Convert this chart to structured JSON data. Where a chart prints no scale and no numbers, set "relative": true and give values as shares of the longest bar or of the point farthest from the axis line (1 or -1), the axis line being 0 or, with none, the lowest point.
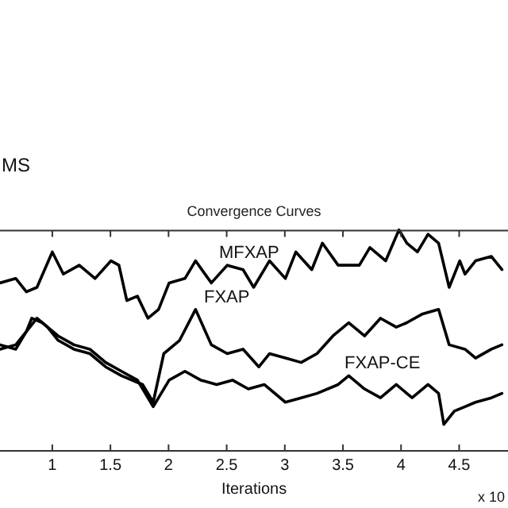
{
  "chart_data": {
    "type": "line",
    "title": "Convergence Curves",
    "xlabel": "Iterations",
    "relative": true,
    "xlim": [
      0.55,
      4.92
    ],
    "xticks": [
      1,
      1.5,
      2,
      2.5,
      3,
      3.5,
      4,
      4.5
    ],
    "grid": false,
    "legend": false,
    "marker": "none",
    "line_style": "solid",
    "annotations": [
      "MS",
      "x 10"
    ],
    "series": [
      {
        "name": "MFXAP",
        "color": "#000000",
        "x": [
          0.55,
          0.686,
          0.777,
          0.868,
          1.0,
          1.095,
          1.232,
          1.368,
          1.505,
          1.573,
          1.641,
          1.732,
          1.823,
          1.914,
          2.005,
          2.141,
          2.232,
          2.368,
          2.505,
          2.641,
          2.732,
          2.868,
          3.005,
          3.095,
          3.232,
          3.323,
          3.459,
          3.641,
          3.732,
          3.868,
          3.982,
          4.05,
          4.141,
          4.232,
          4.323,
          4.414,
          4.505,
          4.55,
          4.641,
          4.777,
          4.868
        ],
        "values": [
          0.76,
          0.78,
          0.72,
          0.74,
          0.9,
          0.8,
          0.84,
          0.78,
          0.86,
          0.84,
          0.68,
          0.7,
          0.6,
          0.64,
          0.76,
          0.78,
          0.86,
          0.76,
          0.84,
          0.82,
          0.74,
          0.86,
          0.78,
          0.9,
          0.82,
          0.94,
          0.84,
          0.84,
          0.92,
          0.86,
          1,
          0.94,
          0.9,
          0.98,
          0.94,
          0.74,
          0.86,
          0.8,
          0.86,
          0.88,
          0.82
        ]
      },
      {
        "name": "FXAP",
        "color": "#000000",
        "x": [
          0.55,
          0.686,
          0.777,
          0.868,
          0.959,
          1.05,
          1.186,
          1.323,
          1.459,
          1.595,
          1.777,
          1.868,
          1.959,
          2.095,
          2.232,
          2.368,
          2.505,
          2.641,
          2.777,
          2.868,
          3.005,
          3.141,
          3.277,
          3.414,
          3.55,
          3.686,
          3.823,
          3.959,
          4.05,
          4.186,
          4.323,
          4.414,
          4.55,
          4.641,
          4.777,
          4.868
        ],
        "values": [
          0.48,
          0.46,
          0.54,
          0.6,
          0.56,
          0.5,
          0.46,
          0.44,
          0.38,
          0.34,
          0.3,
          0.22,
          0.44,
          0.5,
          0.64,
          0.48,
          0.44,
          0.46,
          0.38,
          0.44,
          0.42,
          0.4,
          0.44,
          0.52,
          0.58,
          0.52,
          0.6,
          0.56,
          0.58,
          0.62,
          0.64,
          0.48,
          0.46,
          0.42,
          0.46,
          0.48
        ]
      },
      {
        "name": "FXAP-CE",
        "color": "#000000",
        "x": [
          0.55,
          0.686,
          0.777,
          0.823,
          0.914,
          1.05,
          1.186,
          1.323,
          1.459,
          1.595,
          1.732,
          1.868,
          2.005,
          2.141,
          2.277,
          2.414,
          2.55,
          2.686,
          2.823,
          3.005,
          3.141,
          3.277,
          3.459,
          3.55,
          3.686,
          3.823,
          3.959,
          4.095,
          4.232,
          4.323,
          4.368,
          4.459,
          4.55,
          4.641,
          4.777,
          4.868
        ],
        "values": [
          0.46,
          0.48,
          0.54,
          0.6,
          0.58,
          0.52,
          0.48,
          0.46,
          0.4,
          0.36,
          0.32,
          0.2,
          0.32,
          0.36,
          0.32,
          0.3,
          0.32,
          0.28,
          0.3,
          0.22,
          0.24,
          0.26,
          0.3,
          0.34,
          0.28,
          0.24,
          0.3,
          0.24,
          0.3,
          0.26,
          0.12,
          0.18,
          0.2,
          0.22,
          0.24,
          0.26
        ]
      }
    ]
  }
}
